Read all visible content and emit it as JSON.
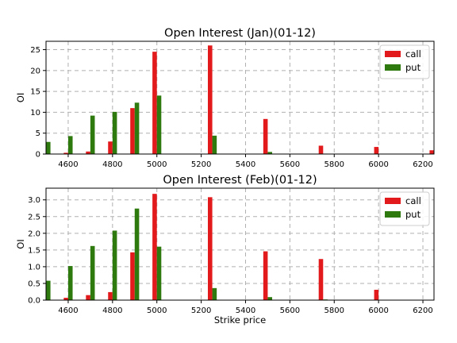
{
  "chart_data": [
    {
      "type": "bar",
      "title": "Open Interest (Jan)(01-12)",
      "xlabel": "",
      "ylabel": "OI",
      "xlim": [
        4500,
        6250
      ],
      "ylim": [
        0,
        27
      ],
      "xticks": [
        4600,
        4800,
        5000,
        5200,
        5400,
        5600,
        5800,
        6000,
        6200
      ],
      "yticks": [
        0,
        5,
        10,
        15,
        20,
        25
      ],
      "grid": true,
      "legend": "top-right",
      "bar_width": 20,
      "series": [
        {
          "name": "call",
          "color": "#e31a1c",
          "offset": -10,
          "points": [
            [
              4600,
              0.3
            ],
            [
              4700,
              0.6
            ],
            [
              4800,
              3
            ],
            [
              4900,
              11
            ],
            [
              5000,
              24.5
            ],
            [
              5250,
              26
            ],
            [
              5500,
              8.4
            ],
            [
              5750,
              2
            ],
            [
              6000,
              1.7
            ],
            [
              6250,
              0.9
            ]
          ]
        },
        {
          "name": "put",
          "color": "#2e7a0e",
          "offset": 10,
          "points": [
            [
              4500,
              2.9
            ],
            [
              4600,
              4.3
            ],
            [
              4700,
              9.2
            ],
            [
              4800,
              10.1
            ],
            [
              4900,
              12.3
            ],
            [
              5000,
              14
            ],
            [
              5250,
              4.4
            ],
            [
              5500,
              0.5
            ],
            [
              5750,
              0.1
            ]
          ]
        }
      ]
    },
    {
      "type": "bar",
      "title": "Open Interest (Feb)(01-12)",
      "xlabel": "Strike price",
      "ylabel": "OI",
      "xlim": [
        4500,
        6250
      ],
      "ylim": [
        0,
        3.35
      ],
      "xticks": [
        4600,
        4800,
        5000,
        5200,
        5400,
        5600,
        5800,
        6000,
        6200
      ],
      "yticks": [
        0.0,
        0.5,
        1.0,
        1.5,
        2.0,
        2.5,
        3.0
      ],
      "grid": true,
      "legend": "top-right",
      "bar_width": 20,
      "series": [
        {
          "name": "call",
          "color": "#e31a1c",
          "offset": -10,
          "points": [
            [
              4600,
              0.07
            ],
            [
              4700,
              0.15
            ],
            [
              4800,
              0.24
            ],
            [
              4900,
              1.43
            ],
            [
              5000,
              3.18
            ],
            [
              5250,
              3.08
            ],
            [
              5500,
              1.46
            ],
            [
              5750,
              1.23
            ],
            [
              6000,
              0.31
            ]
          ]
        },
        {
          "name": "put",
          "color": "#2e7a0e",
          "offset": 10,
          "points": [
            [
              4500,
              0.58
            ],
            [
              4600,
              1.02
            ],
            [
              4700,
              1.62
            ],
            [
              4800,
              2.08
            ],
            [
              4900,
              2.74
            ],
            [
              5000,
              1.6
            ],
            [
              5250,
              0.36
            ],
            [
              5500,
              0.09
            ],
            [
              5750,
              0.02
            ],
            [
              6000,
              0.01
            ]
          ]
        }
      ]
    }
  ]
}
